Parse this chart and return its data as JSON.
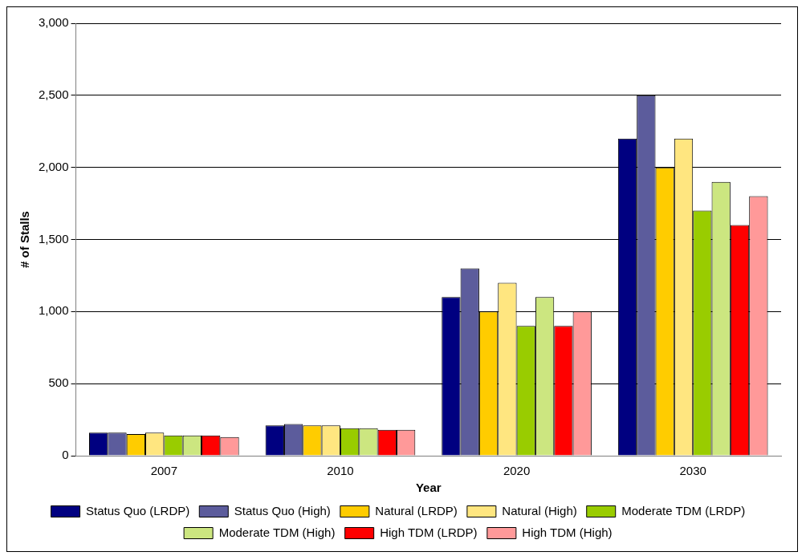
{
  "chart_data": {
    "type": "bar",
    "xlabel": "Year",
    "ylabel": "# of Stalls",
    "categories": [
      "2007",
      "2010",
      "2020",
      "2030"
    ],
    "series": [
      {
        "name": "Status Quo (LRDP)",
        "color": "#000080",
        "values": [
          160,
          210,
          1100,
          2200
        ]
      },
      {
        "name": "Status Quo (High)",
        "color": "#5c5c9c",
        "values": [
          160,
          220,
          1300,
          2500
        ]
      },
      {
        "name": "Natural (LRDP)",
        "color": "#ffcc00",
        "values": [
          150,
          210,
          1000,
          2000
        ]
      },
      {
        "name": "Natural (High)",
        "color": "#ffe680",
        "values": [
          160,
          210,
          1200,
          2200
        ]
      },
      {
        "name": "Moderate TDM (LRDP)",
        "color": "#99cc00",
        "values": [
          140,
          190,
          900,
          1700
        ]
      },
      {
        "name": "Moderate TDM (High)",
        "color": "#cce680",
        "values": [
          140,
          190,
          1100,
          1900
        ]
      },
      {
        "name": "High TDM (LRDP)",
        "color": "#ff0000",
        "values": [
          140,
          180,
          900,
          1600
        ]
      },
      {
        "name": "High TDM (High)",
        "color": "#ff9999",
        "values": [
          130,
          180,
          1000,
          1800
        ]
      }
    ],
    "ylim": [
      0,
      3000
    ],
    "yticks": [
      {
        "value": 0,
        "label": "0"
      },
      {
        "value": 500,
        "label": "500"
      },
      {
        "value": 1000,
        "label": "1,000"
      },
      {
        "value": 1500,
        "label": "1,500"
      },
      {
        "value": 2000,
        "label": "2,000"
      },
      {
        "value": 2500,
        "label": "2,500"
      },
      {
        "value": 3000,
        "label": "3,000"
      }
    ],
    "grid": "y",
    "legend": "bottom"
  }
}
